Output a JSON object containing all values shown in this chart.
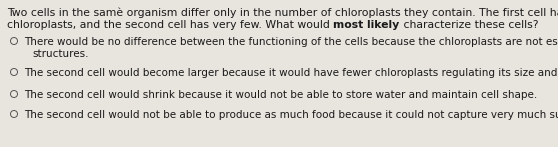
{
  "background_color": "#e8e4de",
  "text_color": "#1a1a1a",
  "circle_color": "#555555",
  "font_size_question": 7.8,
  "font_size_options": 7.5,
  "q_line1": "Two cells in the samè organism differ only in the number of chloroplasts they contain. The first cell has multiple",
  "q_line2_pre": "chloroplasts, and the second cell has very few. What would ",
  "q_line2_bold": "most likely",
  "q_line2_post": " characterize these cells?",
  "options": [
    {
      "line1": "There would be no difference between the functioning of the cells because the chloroplasts are not essential cel",
      "line2": "structures."
    },
    {
      "line1": "The second cell would become larger because it would have fewer chloroplasts regulating its size and shape.",
      "line2": null
    },
    {
      "line1": "The second cell would shrink because it would not be able to store water and maintain cell shape.",
      "line2": null
    },
    {
      "line1": "The second cell would not be able to produce as much food because it could not capture very much sunlight.",
      "line2": null
    }
  ]
}
